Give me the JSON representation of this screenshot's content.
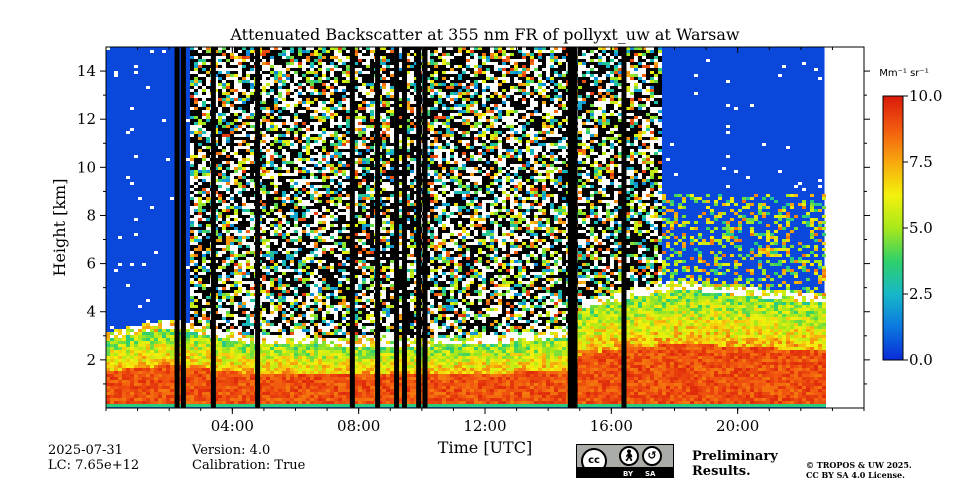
{
  "chart_data": {
    "type": "heatmap",
    "title": "Attenuated Backscatter at 355 nm FR of pollyxt_uw at Warsaw",
    "xlabel": "Time [UTC]",
    "ylabel": "Height [km]",
    "xticks": [
      "04:00",
      "08:00",
      "12:00",
      "16:00",
      "20:00"
    ],
    "xtick_hours": [
      4,
      8,
      12,
      16,
      20
    ],
    "xlim_hours": [
      0,
      24
    ],
    "data_end_hour": 22.75,
    "yticks": [
      2,
      4,
      6,
      8,
      10,
      12,
      14
    ],
    "ylim": [
      0,
      15
    ],
    "colorbar": {
      "label": "Mm⁻¹ sr⁻¹",
      "ticks": [
        "0.0",
        "2.5",
        "5.0",
        "7.5",
        "10.0"
      ],
      "tick_values": [
        0,
        2.5,
        5,
        7.5,
        10
      ],
      "range": [
        0,
        10
      ],
      "colormap": [
        "#0a2bd8",
        "#0b78e0",
        "#17b8c8",
        "#2fd06a",
        "#a8e81a",
        "#f4f10c",
        "#f7a80d",
        "#f25a0f",
        "#d91a0a"
      ]
    },
    "features": {
      "boundary_layer_top_km": [
        {
          "t": 0,
          "h": 2.9
        },
        {
          "t": 2,
          "h": 3.4
        },
        {
          "t": 4,
          "h": 2.8
        },
        {
          "t": 8,
          "h": 2.6
        },
        {
          "t": 12,
          "h": 2.7
        },
        {
          "t": 14.6,
          "h": 3.0
        },
        {
          "t": 15,
          "h": 4.2
        },
        {
          "t": 18,
          "h": 5.0
        },
        {
          "t": 22.75,
          "h": 4.4
        }
      ],
      "black_bars_hours": [
        2.25,
        2.45,
        3.4,
        4.8,
        7.8,
        8.6,
        9.2,
        9.45,
        9.9,
        10.1,
        14.7,
        14.85,
        16.4
      ],
      "noise_region_hours": [
        2.6,
        17.5
      ]
    }
  },
  "meta": {
    "date": "2025-07-31",
    "lc": "LC: 7.65e+12",
    "version": "Version: 4.0",
    "calibration": "Calibration: True"
  },
  "license": {
    "preliminary_line1": "Preliminary",
    "preliminary_line2": "Results.",
    "copyright_line1": "© TROPOS & UW 2025.",
    "copyright_line2": "CC BY SA 4.0 License.",
    "badge_by": "BY",
    "badge_sa": "SA"
  },
  "colors": {
    "background_blue": "#0a48dc",
    "preliminary_red": "#e8392b"
  }
}
